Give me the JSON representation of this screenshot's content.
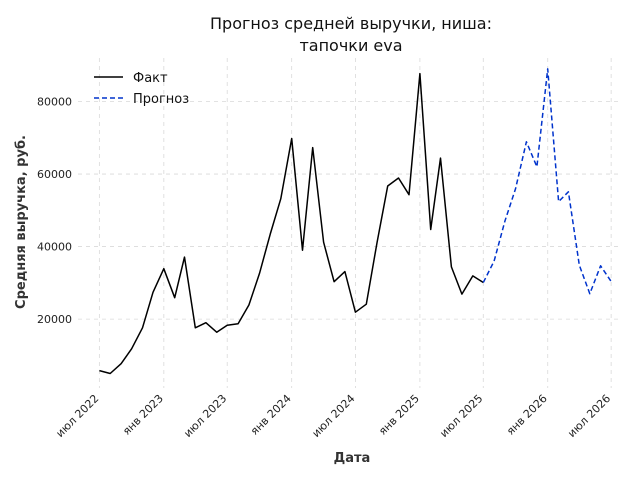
{
  "chart_data": {
    "type": "line",
    "title": [
      "Прогноз средней выручки, ниша:",
      "тапочки eva"
    ],
    "xlabel": "Дата",
    "ylabel": "Средняя выручка, руб.",
    "x_ticks": [
      {
        "label": "июл 2022",
        "date": "2022-07-01"
      },
      {
        "label": "янв 2023",
        "date": "2023-01-01"
      },
      {
        "label": "июл 2023",
        "date": "2023-07-01"
      },
      {
        "label": "янв 2024",
        "date": "2024-01-01"
      },
      {
        "label": "июл 2024",
        "date": "2024-07-01"
      },
      {
        "label": "янв 2025",
        "date": "2025-01-01"
      },
      {
        "label": "июл 2025",
        "date": "2025-07-01"
      },
      {
        "label": "янв 2026",
        "date": "2026-01-01"
      },
      {
        "label": "июл 2026",
        "date": "2026-07-01"
      }
    ],
    "y_ticks": [
      {
        "label": "20000",
        "value": 20000
      },
      {
        "label": "40000",
        "value": 40000
      },
      {
        "label": "60000",
        "value": 60000
      },
      {
        "label": "80000",
        "value": 80000
      }
    ],
    "ylim": [
      1000,
      92000
    ],
    "xlim": [
      "2022-05-01",
      "2026-08-01"
    ],
    "grid": true,
    "legend_position": "top-left",
    "series": [
      {
        "name": "Факт",
        "color": "#000000",
        "style": "solid",
        "points": [
          {
            "x": "2022-07-01",
            "y": 5800
          },
          {
            "x": "2022-08-01",
            "y": 5000
          },
          {
            "x": "2022-09-01",
            "y": 7700
          },
          {
            "x": "2022-10-01",
            "y": 11800
          },
          {
            "x": "2022-11-01",
            "y": 17600
          },
          {
            "x": "2022-12-01",
            "y": 27400
          },
          {
            "x": "2023-01-01",
            "y": 33900
          },
          {
            "x": "2023-02-01",
            "y": 25900
          },
          {
            "x": "2023-03-01",
            "y": 37100
          },
          {
            "x": "2023-04-01",
            "y": 17600
          },
          {
            "x": "2023-05-01",
            "y": 19000
          },
          {
            "x": "2023-06-01",
            "y": 16400
          },
          {
            "x": "2023-07-01",
            "y": 18300
          },
          {
            "x": "2023-08-01",
            "y": 18700
          },
          {
            "x": "2023-09-01",
            "y": 23900
          },
          {
            "x": "2023-10-01",
            "y": 32600
          },
          {
            "x": "2023-11-01",
            "y": 43500
          },
          {
            "x": "2023-12-01",
            "y": 53200
          },
          {
            "x": "2024-01-01",
            "y": 69800
          },
          {
            "x": "2024-02-01",
            "y": 39000
          },
          {
            "x": "2024-03-01",
            "y": 67300
          },
          {
            "x": "2024-04-01",
            "y": 41200
          },
          {
            "x": "2024-05-01",
            "y": 30300
          },
          {
            "x": "2024-06-01",
            "y": 33100
          },
          {
            "x": "2024-07-01",
            "y": 21900
          },
          {
            "x": "2024-08-01",
            "y": 24100
          },
          {
            "x": "2024-09-01",
            "y": 41200
          },
          {
            "x": "2024-10-01",
            "y": 56700
          },
          {
            "x": "2024-11-01",
            "y": 58900
          },
          {
            "x": "2024-12-01",
            "y": 54300
          },
          {
            "x": "2025-01-01",
            "y": 87700
          },
          {
            "x": "2025-02-01",
            "y": 44700
          },
          {
            "x": "2025-03-01",
            "y": 64400
          },
          {
            "x": "2025-04-01",
            "y": 34400
          },
          {
            "x": "2025-05-01",
            "y": 26900
          },
          {
            "x": "2025-06-01",
            "y": 31900
          },
          {
            "x": "2025-07-01",
            "y": 30100
          }
        ]
      },
      {
        "name": "Прогноз",
        "color": "#0033cc",
        "style": "dashed",
        "points": [
          {
            "x": "2025-07-01",
            "y": 30100
          },
          {
            "x": "2025-08-01",
            "y": 36000
          },
          {
            "x": "2025-09-01",
            "y": 47100
          },
          {
            "x": "2025-10-01",
            "y": 55900
          },
          {
            "x": "2025-11-01",
            "y": 68900
          },
          {
            "x": "2025-12-01",
            "y": 62000
          },
          {
            "x": "2026-01-01",
            "y": 89000
          },
          {
            "x": "2026-02-01",
            "y": 52400
          },
          {
            "x": "2026-03-01",
            "y": 55100
          },
          {
            "x": "2026-04-01",
            "y": 34900
          },
          {
            "x": "2026-05-01",
            "y": 27000
          },
          {
            "x": "2026-06-01",
            "y": 34700
          },
          {
            "x": "2026-07-01",
            "y": 30400
          }
        ]
      }
    ]
  }
}
